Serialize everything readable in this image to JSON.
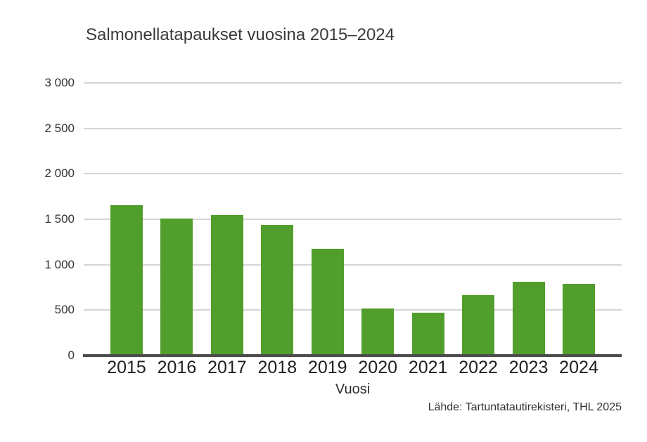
{
  "chart_data": {
    "type": "bar",
    "title": "Salmonellatapaukset vuosina 2015–2024",
    "categories": [
      "2015",
      "2016",
      "2017",
      "2018",
      "2019",
      "2020",
      "2021",
      "2022",
      "2023",
      "2024"
    ],
    "values": [
      1655,
      1510,
      1545,
      1435,
      1175,
      515,
      470,
      665,
      815,
      785
    ],
    "xlabel": "Vuosi",
    "ylabel": "",
    "ylim": [
      0,
      3000
    ],
    "ytick_step": 500,
    "ytick_labels": [
      "0",
      "500",
      "1 000",
      "1 500",
      "2 000",
      "2 500",
      "3 000"
    ],
    "grid": true,
    "legend": "none",
    "source_note": "Lähde: Tartuntatautirekisteri, THL 2025",
    "colors": {
      "bar": "#529E2C",
      "axis_line": "#4d4d4d",
      "gridline": "#d5d5d5",
      "background": "#ffffff"
    }
  }
}
